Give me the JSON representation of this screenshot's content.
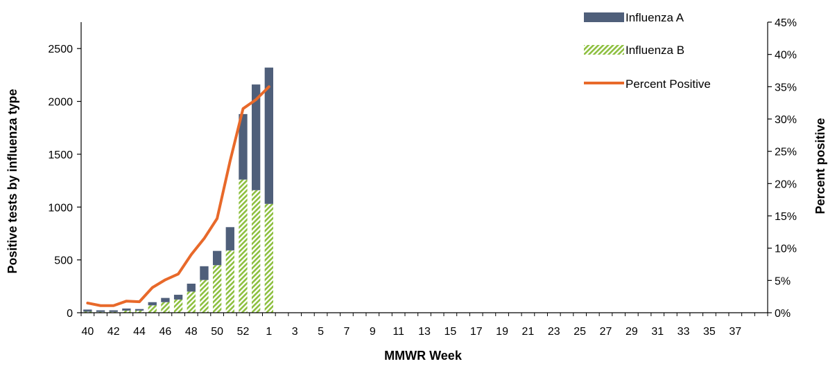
{
  "chart_data": {
    "type": "bar",
    "stacked": true,
    "xlabel": "MMWR Week",
    "ylabel": "Positive tests by influenza type",
    "y2label": "Percent positive",
    "ylim": [
      0,
      2750
    ],
    "y2lim": [
      0,
      45
    ],
    "yticks": [
      0,
      500,
      1000,
      1500,
      2000,
      2500
    ],
    "y2ticks": [
      0,
      5,
      10,
      15,
      20,
      25,
      30,
      35,
      40,
      45
    ],
    "y2tick_labels": [
      "0%",
      "5%",
      "10%",
      "15%",
      "20%",
      "25%",
      "30%",
      "35%",
      "40%",
      "45%"
    ],
    "categories": [
      "40",
      "41",
      "42",
      "43",
      "44",
      "45",
      "46",
      "47",
      "48",
      "49",
      "50",
      "51",
      "52",
      "53",
      "1",
      "2",
      "3",
      "4",
      "5",
      "6",
      "7",
      "8",
      "9",
      "10",
      "11",
      "12",
      "13",
      "14",
      "15",
      "16",
      "17",
      "18",
      "19",
      "20",
      "21",
      "22",
      "23",
      "24",
      "25",
      "26",
      "27",
      "28",
      "29",
      "30",
      "31",
      "32",
      "33",
      "34",
      "35",
      "36",
      "37",
      "38",
      "39"
    ],
    "x_tick_labels": [
      "40",
      "42",
      "44",
      "46",
      "48",
      "50",
      "52",
      "1",
      "3",
      "5",
      "7",
      "9",
      "11",
      "13",
      "15",
      "17",
      "19",
      "21",
      "23",
      "25",
      "27",
      "29",
      "31",
      "33",
      "35",
      "37"
    ],
    "series": [
      {
        "name": "Influenza B",
        "color": "#8DBF3F",
        "pattern": "diagonal-hatch",
        "values": [
          10,
          8,
          8,
          20,
          20,
          70,
          100,
          125,
          200,
          310,
          450,
          590,
          1260,
          1160,
          1030,
          null,
          null,
          null,
          null,
          null,
          null,
          null,
          null,
          null,
          null,
          null,
          null,
          null,
          null,
          null,
          null,
          null,
          null,
          null,
          null,
          null,
          null,
          null,
          null,
          null,
          null,
          null,
          null,
          null,
          null,
          null,
          null,
          null,
          null,
          null,
          null,
          null,
          null
        ]
      },
      {
        "name": "Influenza A",
        "color": "#4F5F7A",
        "values": [
          20,
          15,
          15,
          20,
          15,
          30,
          40,
          45,
          75,
          130,
          135,
          220,
          620,
          1000,
          1290,
          null,
          null,
          null,
          null,
          null,
          null,
          null,
          null,
          null,
          null,
          null,
          null,
          null,
          null,
          null,
          null,
          null,
          null,
          null,
          null,
          null,
          null,
          null,
          null,
          null,
          null,
          null,
          null,
          null,
          null,
          null,
          null,
          null,
          null,
          null,
          null,
          null,
          null
        ]
      },
      {
        "name": "Percent Positive",
        "type": "line",
        "axis": "y2",
        "color": "#E8692A",
        "values": [
          1.5,
          1.1,
          1.1,
          1.8,
          1.7,
          3.9,
          5.1,
          6.0,
          9.0,
          11.5,
          14.6,
          23.5,
          31.6,
          33.0,
          35.0,
          null,
          null,
          null,
          null,
          null,
          null,
          null,
          null,
          null,
          null,
          null,
          null,
          null,
          null,
          null,
          null,
          null,
          null,
          null,
          null,
          null,
          null,
          null,
          null,
          null,
          null,
          null,
          null,
          null,
          null,
          null,
          null,
          null,
          null,
          null,
          null,
          null,
          null
        ]
      }
    ],
    "legend": {
      "placement": "top-right",
      "entries": [
        "Influenza A",
        "Influenza B",
        "Percent Positive"
      ]
    },
    "grid": false
  }
}
